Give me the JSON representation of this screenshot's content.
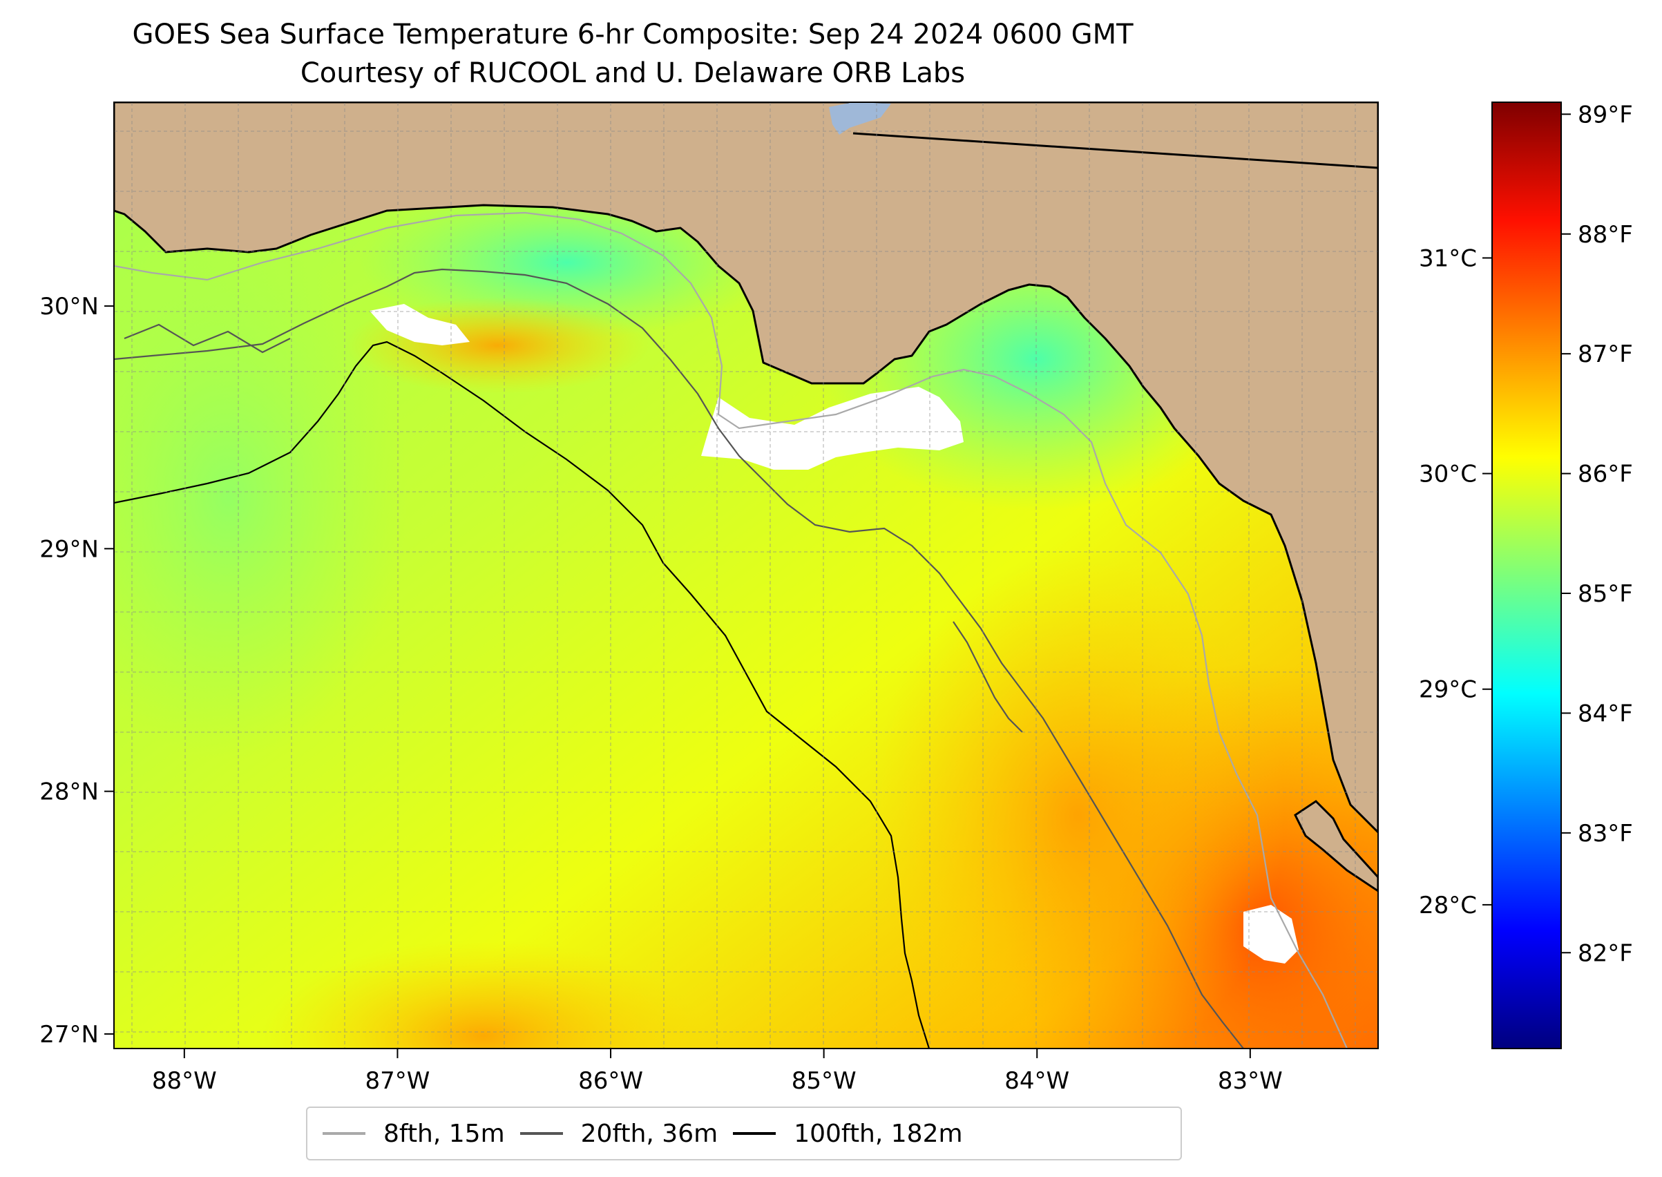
{
  "title": {
    "line1": "GOES Sea Surface Temperature 6-hr Composite: Sep 24 2024 0600 GMT",
    "line2": "Courtesy of RUCOOL and U. Delaware ORB Labs"
  },
  "map": {
    "lon_range": [
      -88.33,
      -82.4
    ],
    "lat_range": [
      26.94,
      30.84
    ],
    "lon_ticks": [
      {
        "value": -88,
        "label": "88°W"
      },
      {
        "value": -87,
        "label": "87°W"
      },
      {
        "value": -86,
        "label": "86°W"
      },
      {
        "value": -85,
        "label": "85°W"
      },
      {
        "value": -84,
        "label": "84°W"
      },
      {
        "value": -83,
        "label": "83°W"
      }
    ],
    "lat_ticks": [
      {
        "value": 27,
        "label": "27°N"
      },
      {
        "value": 28,
        "label": "28°N"
      },
      {
        "value": 29,
        "label": "29°N"
      },
      {
        "value": 30,
        "label": "30°N"
      }
    ],
    "land_color": "#cfb08c",
    "no_data_color": "#ffffff",
    "grid": true
  },
  "colorbar": {
    "colormap": "jet",
    "fahrenheit_range": [
      81.2,
      89.1
    ],
    "celsius_ticks": [
      {
        "value": 28,
        "label": "28°C"
      },
      {
        "value": 29,
        "label": "29°C"
      },
      {
        "value": 30,
        "label": "30°C"
      },
      {
        "value": 31,
        "label": "31°C"
      }
    ],
    "fahrenheit_ticks": [
      {
        "value": 82,
        "label": "82°F"
      },
      {
        "value": 83,
        "label": "83°F"
      },
      {
        "value": 84,
        "label": "84°F"
      },
      {
        "value": 85,
        "label": "85°F"
      },
      {
        "value": 86,
        "label": "86°F"
      },
      {
        "value": 87,
        "label": "87°F"
      },
      {
        "value": 88,
        "label": "88°F"
      },
      {
        "value": 89,
        "label": "89°F"
      }
    ]
  },
  "legend": {
    "items": [
      {
        "label": "8fth, 15m",
        "color": "#a9a9a9"
      },
      {
        "label": "20fth, 36m",
        "color": "#555555"
      },
      {
        "label": "100fth, 182m",
        "color": "#000000"
      }
    ]
  }
}
